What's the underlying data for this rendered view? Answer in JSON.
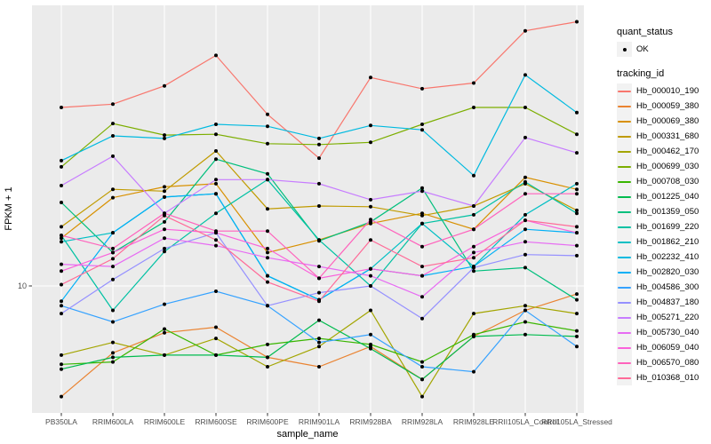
{
  "axes": {
    "y_label": "FPKM + 1",
    "y_tick_label": "10",
    "x_label": "sample_name"
  },
  "legend": {
    "quant_status_title": "quant_status",
    "quant_status_items": [
      {
        "label": "OK",
        "marker": "black-point"
      }
    ],
    "tracking_title": "tracking_id"
  },
  "colors": {
    "panel_background": "#EBEBEB",
    "gridline": "#FFFFFF",
    "tick": "#333333",
    "axis_text": "#4D4D4D",
    "point_marker": "#000000"
  },
  "chart_data": {
    "type": "line",
    "x_axis_label": "sample_name",
    "y_axis_label": "FPKM + 1",
    "y_scale": "log10",
    "y_breaks": [
      10
    ],
    "ylim": [
      3.9,
      85
    ],
    "grid": "major vertical per category, horizontal at y=10",
    "legend_position": "right",
    "point_marker": "black dot at every observation (quant_status = OK)",
    "x_categories": [
      "PB350LA",
      "RRIM600LA",
      "RRIM600LE",
      "RRIM600SE",
      "RRIM600PE",
      "RRIM901LA",
      "RRIM928BA",
      "RRIM928LA",
      "RRIM928LE",
      "RRII105LA_Control",
      "RRII105LA_Stressed"
    ],
    "series": [
      {
        "name": "Hb_000010_190",
        "color": "#F8766D",
        "values": [
          39,
          40,
          46,
          58,
          37,
          26.5,
          49,
          45,
          47,
          70,
          75
        ]
      },
      {
        "name": "Hb_000059_380",
        "color": "#EA8331",
        "values": [
          4.3,
          6.0,
          7.0,
          7.3,
          5.8,
          5.4,
          6.3,
          4.9,
          6.8,
          8.3,
          9.4
        ]
      },
      {
        "name": "Hb_000069_380",
        "color": "#D89000",
        "values": [
          14.4,
          19.6,
          21.3,
          21.8,
          12.9,
          14.2,
          16.1,
          17.4,
          15.4,
          22.9,
          20.9
        ]
      },
      {
        "name": "Hb_000331_680",
        "color": "#C09B00",
        "values": [
          15.7,
          20.9,
          20.6,
          28,
          18,
          18.4,
          18.3,
          17.1,
          18.4,
          21.8,
          17.8
        ]
      },
      {
        "name": "Hb_000462_170",
        "color": "#A3A500",
        "values": [
          5.9,
          6.5,
          5.9,
          6.7,
          5.4,
          6.3,
          8.3,
          4.3,
          8.1,
          8.6,
          8.1
        ]
      },
      {
        "name": "Hb_000699_030",
        "color": "#7CAE00",
        "values": [
          24.8,
          34.5,
          31.6,
          31.8,
          29.6,
          29.4,
          29.9,
          34.3,
          39,
          39,
          31.8
        ]
      },
      {
        "name": "Hb_000708_030",
        "color": "#39B600",
        "values": [
          5.5,
          5.6,
          7.2,
          5.9,
          6.4,
          6.7,
          6.4,
          5.6,
          6.9,
          7.6,
          7.1
        ]
      },
      {
        "name": "Hb_001225_040",
        "color": "#00BB4E",
        "values": [
          5.3,
          5.8,
          5.9,
          5.9,
          5.8,
          7.7,
          6.2,
          4.9,
          6.8,
          6.9,
          6.8
        ]
      },
      {
        "name": "Hb_001359_050",
        "color": "#00BF7D",
        "values": [
          18.9,
          12.9,
          16.3,
          26.3,
          23.5,
          14.1,
          16.3,
          21.1,
          11.2,
          11.5,
          9
        ]
      },
      {
        "name": "Hb_001699_220",
        "color": "#00C1A3",
        "values": [
          14.7,
          8.3,
          13,
          17.4,
          22.5,
          14.2,
          10,
          16.1,
          17.2,
          22.1,
          17.4
        ]
      },
      {
        "name": "Hb_001862_210",
        "color": "#00BFC4",
        "values": [
          14,
          15,
          19.7,
          20.2,
          10.8,
          9,
          11.4,
          16.1,
          11.6,
          17.2,
          21.8
        ]
      },
      {
        "name": "Hb_002232_410",
        "color": "#00BAE0",
        "values": [
          26,
          31.4,
          30.8,
          34.3,
          33.8,
          30.8,
          34,
          32.9,
          23.2,
          50,
          37.5
        ]
      },
      {
        "name": "Hb_002820_030",
        "color": "#00B0F6",
        "values": [
          8.9,
          15,
          19.7,
          20.2,
          10.8,
          9,
          11.4,
          10.8,
          11.6,
          15.4,
          15
        ]
      },
      {
        "name": "Hb_004586_300",
        "color": "#35A2FF",
        "values": [
          8.6,
          7.6,
          8.7,
          9.6,
          8.6,
          6.5,
          6.9,
          5.4,
          5.2,
          8.3,
          6.3
        ]
      },
      {
        "name": "Hb_004837_180",
        "color": "#9590FF",
        "values": [
          8.1,
          10.5,
          13.3,
          15,
          8.6,
          9.5,
          10,
          7.8,
          11.5,
          12.7,
          12.6
        ]
      },
      {
        "name": "Hb_005271_220",
        "color": "#C77CFF",
        "values": [
          21.5,
          26.9,
          17.4,
          22.5,
          22.5,
          21.8,
          19.3,
          20.6,
          18.4,
          31,
          27.6
        ]
      },
      {
        "name": "Hb_005730_040",
        "color": "#E76BF3",
        "values": [
          11.8,
          11.6,
          14.4,
          13.6,
          12.4,
          11.6,
          10.8,
          9.2,
          12.9,
          14,
          13.6
        ]
      },
      {
        "name": "Hb_006059_040",
        "color": "#FA62DB",
        "values": [
          11.2,
          12.9,
          15.4,
          15,
          13.3,
          10.6,
          11.4,
          10.8,
          13.5,
          16.5,
          15
        ]
      },
      {
        "name": "Hb_006570_080",
        "color": "#FF62BC",
        "values": [
          14.7,
          13.3,
          17.4,
          15.2,
          15.2,
          10.6,
          16.6,
          13.5,
          15.4,
          20.2,
          20.2
        ]
      },
      {
        "name": "Hb_010368_010",
        "color": "#FF6A98",
        "values": [
          10.1,
          12.3,
          17.1,
          14.2,
          10.3,
          8.9,
          14.2,
          11.6,
          12.4,
          16.5,
          15.7
        ]
      }
    ]
  }
}
